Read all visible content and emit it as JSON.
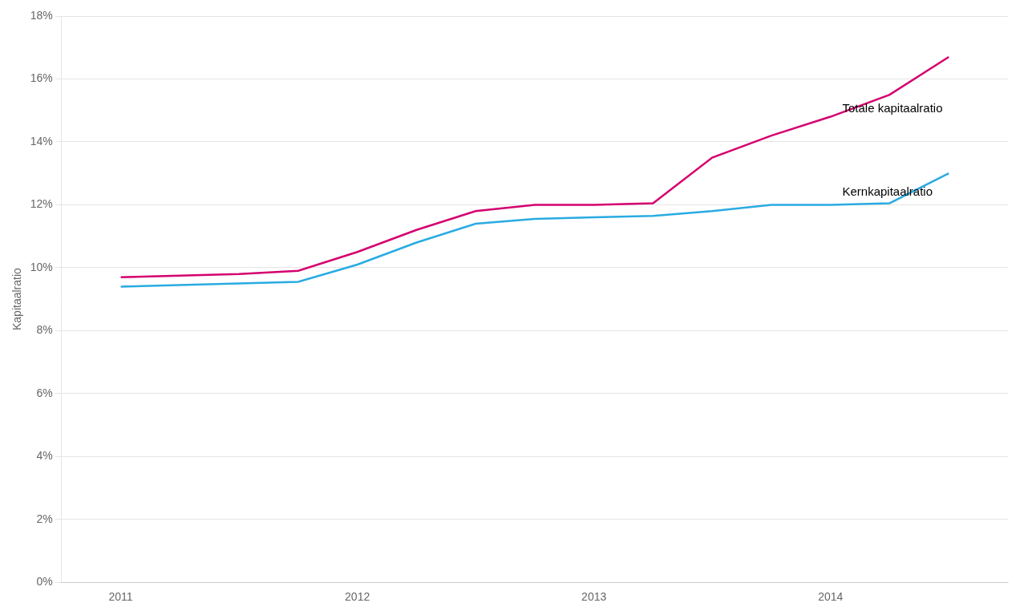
{
  "chart_data": {
    "type": "line",
    "y_label": "Kapitaalratio",
    "series": [
      {
        "name": "Totale kapitaalratio",
        "color": "#d4006e",
        "x": [
          2011.0,
          2011.25,
          2011.5,
          2011.75,
          2012.0,
          2012.25,
          2012.5,
          2012.75,
          2013.0,
          2013.25,
          2013.5,
          2013.75,
          2014.0,
          2014.25,
          2014.5
        ],
        "values": [
          9.7,
          9.75,
          9.8,
          9.9,
          10.5,
          11.2,
          11.8,
          12.0,
          12.0,
          12.05,
          13.5,
          14.2,
          14.8,
          15.5,
          16.7
        ]
      },
      {
        "name": "Kernkapitaalratio",
        "color": "#29abe2",
        "x": [
          2011.0,
          2011.25,
          2011.5,
          2011.75,
          2012.0,
          2012.25,
          2012.5,
          2012.75,
          2013.0,
          2013.25,
          2013.5,
          2013.75,
          2014.0,
          2014.25,
          2014.5
        ],
        "values": [
          9.4,
          9.45,
          9.5,
          9.55,
          10.1,
          10.8,
          11.4,
          11.55,
          11.6,
          11.65,
          11.8,
          12.0,
          12.0,
          12.05,
          13.0
        ]
      }
    ],
    "annotations": [
      {
        "text": "Totale kapitaalratio",
        "x": 2014.05,
        "y": 15.05
      },
      {
        "text": "Kernkapitaalratio",
        "x": 2014.05,
        "y": 12.4
      }
    ],
    "xlim": [
      2010.75,
      2014.75
    ],
    "xticks": [
      2011,
      2012,
      2013,
      2014
    ],
    "ylim": [
      0,
      18
    ],
    "yticks": [
      {
        "value": 0,
        "label": "0%"
      },
      {
        "value": 2,
        "label": "2%"
      },
      {
        "value": 4,
        "label": "4%"
      },
      {
        "value": 6,
        "label": "6%"
      },
      {
        "value": 8,
        "label": "8%"
      },
      {
        "value": 10,
        "label": "10%"
      },
      {
        "value": 12,
        "label": "12%"
      },
      {
        "value": 14,
        "label": "14%"
      },
      {
        "value": 16,
        "label": "16%"
      },
      {
        "value": 18,
        "label": "18%"
      }
    ],
    "grid": "y"
  }
}
